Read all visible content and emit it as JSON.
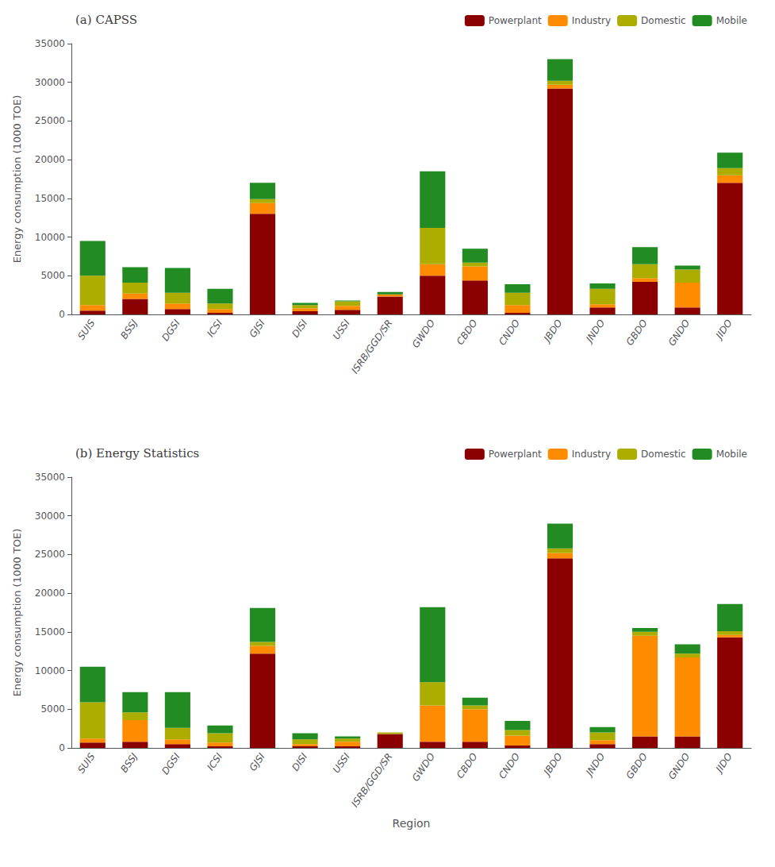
{
  "chart_data": [
    {
      "type": "bar",
      "title": "(a) CAPSS",
      "categories": [
        "SUIS",
        "BSSJ",
        "DGSI",
        "ICSI",
        "GJSI",
        "DISI",
        "USSI",
        "ISRB/GGD/SR",
        "GWDO",
        "CBDO",
        "CNDO",
        "JBDO",
        "JNDO",
        "GBDO",
        "GNDO",
        "JIDO"
      ],
      "series": [
        {
          "name": "Powerplant",
          "color": "#8B0000",
          "values": [
            500,
            2000,
            700,
            200,
            13000,
            400,
            600,
            2300,
            5000,
            4400,
            200,
            29200,
            900,
            4200,
            900,
            17000
          ]
        },
        {
          "name": "Industry",
          "color": "#FF8C00",
          "values": [
            700,
            700,
            700,
            500,
            1400,
            400,
            500,
            300,
            1500,
            1800,
            1000,
            500,
            400,
            500,
            3200,
            1000
          ]
        },
        {
          "name": "Domestic",
          "color": "#ADAD00",
          "values": [
            3800,
            1400,
            1400,
            700,
            500,
            400,
            600,
            0,
            4700,
            500,
            1600,
            500,
            2000,
            1800,
            1700,
            900
          ]
        },
        {
          "name": "Mobile",
          "color": "#228B22",
          "values": [
            4500,
            2000,
            3200,
            1900,
            2100,
            300,
            100,
            300,
            7300,
            1800,
            1100,
            2800,
            700,
            2200,
            500,
            2000
          ]
        }
      ],
      "ylabel": "Energy consumption (1000 TOE)",
      "ylim": [
        0,
        35000
      ],
      "yticks": [
        0,
        5000,
        10000,
        15000,
        20000,
        25000,
        30000,
        35000
      ],
      "stacked": true,
      "grid": false,
      "legend": "upper right"
    },
    {
      "type": "bar",
      "title": "(b) Energy Statistics",
      "categories": [
        "SUIS",
        "BSSJ",
        "DGSI",
        "ICSI",
        "GJSI",
        "DISI",
        "USSI",
        "ISRB/GGD/SR",
        "GWDO",
        "CBDO",
        "CNDO",
        "JBDO",
        "JNDO",
        "GBDO",
        "GNDO",
        "JIDO"
      ],
      "series": [
        {
          "name": "Powerplant",
          "color": "#8B0000",
          "values": [
            700,
            800,
            500,
            200,
            12200,
            200,
            200,
            1800,
            800,
            800,
            300,
            24500,
            500,
            1500,
            1500,
            14300
          ]
        },
        {
          "name": "Industry",
          "color": "#FF8C00",
          "values": [
            500,
            2800,
            600,
            500,
            1000,
            300,
            600,
            0,
            4700,
            4200,
            1300,
            700,
            500,
            13000,
            10200,
            300
          ]
        },
        {
          "name": "Domestic",
          "color": "#ADAD00",
          "values": [
            4700,
            1000,
            1500,
            1200,
            500,
            600,
            400,
            200,
            3000,
            500,
            700,
            600,
            1000,
            500,
            500,
            500
          ]
        },
        {
          "name": "Mobile",
          "color": "#228B22",
          "values": [
            4600,
            2600,
            4600,
            1000,
            4400,
            800,
            300,
            0,
            9700,
            1000,
            1200,
            3200,
            700,
            500,
            1200,
            3500
          ]
        }
      ],
      "xlabel": "Region",
      "ylabel": "Energy consumption (1000 TOE)",
      "ylim": [
        0,
        35000
      ],
      "yticks": [
        0,
        5000,
        10000,
        15000,
        20000,
        25000,
        30000,
        35000
      ],
      "stacked": true,
      "grid": false,
      "legend": "upper right"
    }
  ]
}
